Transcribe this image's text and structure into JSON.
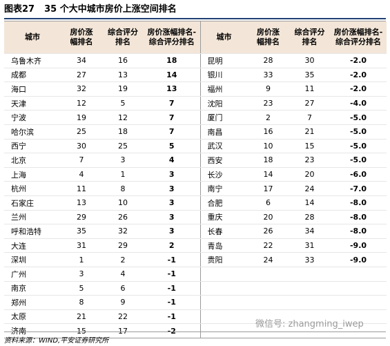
{
  "header": {
    "title_label": "图表27",
    "title": "35 个大中城市房价上涨空间排名"
  },
  "columns": [
    [
      "城市"
    ],
    [
      "房价涨",
      "幅排名"
    ],
    [
      "综合评分",
      "排名"
    ],
    [
      "房价涨幅排名-",
      "综合评分排名"
    ]
  ],
  "left": {
    "rows": [
      [
        "乌鲁木齐",
        "34",
        "16",
        "18"
      ],
      [
        "成都",
        "27",
        "13",
        "14"
      ],
      [
        "海口",
        "32",
        "19",
        "13"
      ],
      [
        "天津",
        "12",
        "5",
        "7"
      ],
      [
        "宁波",
        "19",
        "12",
        "7"
      ],
      [
        "哈尔滨",
        "25",
        "18",
        "7"
      ],
      [
        "西宁",
        "30",
        "25",
        "5"
      ],
      [
        "北京",
        "7",
        "3",
        "4"
      ],
      [
        "上海",
        "4",
        "1",
        "3"
      ],
      [
        "杭州",
        "11",
        "8",
        "3"
      ],
      [
        "石家庄",
        "13",
        "10",
        "3"
      ],
      [
        "兰州",
        "29",
        "26",
        "3"
      ],
      [
        "呼和浩特",
        "35",
        "32",
        "3"
      ],
      [
        "大连",
        "31",
        "29",
        "2"
      ],
      [
        "深圳",
        "1",
        "2",
        "-1"
      ],
      [
        "广州",
        "3",
        "4",
        "-1"
      ],
      [
        "南京",
        "5",
        "6",
        "-1"
      ],
      [
        "郑州",
        "8",
        "9",
        "-1"
      ],
      [
        "太原",
        "21",
        "22",
        "-1"
      ],
      [
        "济南",
        "15",
        "17",
        "-2"
      ]
    ]
  },
  "right": {
    "rows": [
      [
        "昆明",
        "28",
        "30",
        "-2.0"
      ],
      [
        "银川",
        "33",
        "35",
        "-2.0"
      ],
      [
        "福州",
        "9",
        "11",
        "-2.0"
      ],
      [
        "沈阳",
        "23",
        "27",
        "-4.0"
      ],
      [
        "厦门",
        "2",
        "7",
        "-5.0"
      ],
      [
        "南昌",
        "16",
        "21",
        "-5.0"
      ],
      [
        "武汉",
        "10",
        "15",
        "-5.0"
      ],
      [
        "西安",
        "18",
        "23",
        "-5.0"
      ],
      [
        "长沙",
        "14",
        "20",
        "-6.0"
      ],
      [
        "南宁",
        "17",
        "24",
        "-7.0"
      ],
      [
        "合肥",
        "6",
        "14",
        "-8.0"
      ],
      [
        "重庆",
        "20",
        "28",
        "-8.0"
      ],
      [
        "长春",
        "26",
        "34",
        "-8.0"
      ],
      [
        "青岛",
        "22",
        "31",
        "-9.0"
      ],
      [
        "贵阳",
        "24",
        "33",
        "-9.0"
      ]
    ]
  },
  "footer": {
    "source": "资料来源：WIND,平安证券研究所"
  },
  "watermark": "微信号: zhangming_iwep"
}
